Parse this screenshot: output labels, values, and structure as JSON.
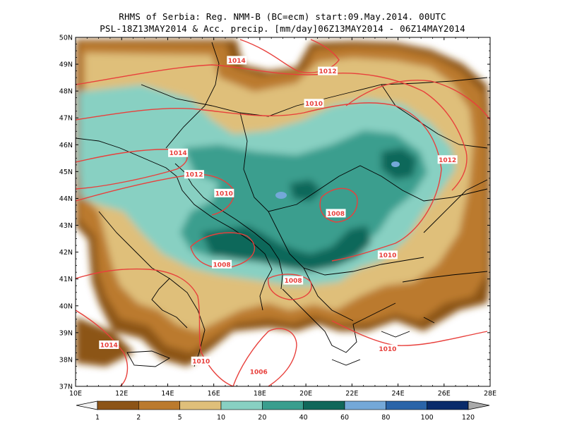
{
  "title_line1": "RHMS of Serbia: Reg. NMM-B (BC=ecm) start:09.May.2014. 00UTC",
  "title_line2": "PSL-18Z13MAY2014 & Acc. precip. [mm/day]06Z13MAY2014 - 06Z14MAY2014",
  "lat_labels": [
    "50N",
    "49N",
    "48N",
    "47N",
    "46N",
    "45N",
    "44N",
    "43N",
    "42N",
    "41N",
    "40N",
    "39N",
    "38N",
    "37N"
  ],
  "lon_labels": [
    "10E",
    "12E",
    "14E",
    "16E",
    "18E",
    "20E",
    "22E",
    "24E",
    "26E",
    "28E"
  ],
  "isobar_labels": [
    {
      "text": "1014",
      "lon": 17.0,
      "lat": 49.15
    },
    {
      "text": "1012",
      "lon": 20.95,
      "lat": 48.75
    },
    {
      "text": "1010",
      "lon": 20.35,
      "lat": 47.55
    },
    {
      "text": "1014",
      "lon": 14.45,
      "lat": 45.7
    },
    {
      "text": "1012",
      "lon": 15.15,
      "lat": 44.9
    },
    {
      "text": "1010",
      "lon": 16.45,
      "lat": 44.2
    },
    {
      "text": "1008",
      "lon": 21.3,
      "lat": 43.45
    },
    {
      "text": "1012",
      "lon": 26.15,
      "lat": 45.45
    },
    {
      "text": "1010",
      "lon": 23.55,
      "lat": 41.9
    },
    {
      "text": "1008",
      "lon": 16.35,
      "lat": 41.55
    },
    {
      "text": "1008",
      "lon": 19.45,
      "lat": 40.95
    },
    {
      "text": "1014",
      "lon": 11.45,
      "lat": 38.55
    },
    {
      "text": "1010",
      "lon": 15.45,
      "lat": 37.95
    },
    {
      "text": "1006",
      "lon": 17.95,
      "lat": 37.55
    },
    {
      "text": "1010",
      "lon": 23.55,
      "lat": 38.4
    }
  ],
  "colorbar": {
    "labels": [
      "1",
      "2",
      "5",
      "10",
      "20",
      "40",
      "60",
      "80",
      "100",
      "120"
    ],
    "colors": [
      "#8c5417",
      "#bb7a2e",
      "#dfbf7a",
      "#88d0c2",
      "#3a9e8e",
      "#10675a",
      "#74a8d8",
      "#2a64a8",
      "#0a2b6a"
    ],
    "under_color": "#f2f2f2",
    "over_color": "#aaaaaa"
  },
  "map": {
    "lon_range": [
      10,
      28
    ],
    "lat_range": [
      37,
      50
    ],
    "precip_units": "mm/day",
    "isobar_color": "#e8403c"
  }
}
